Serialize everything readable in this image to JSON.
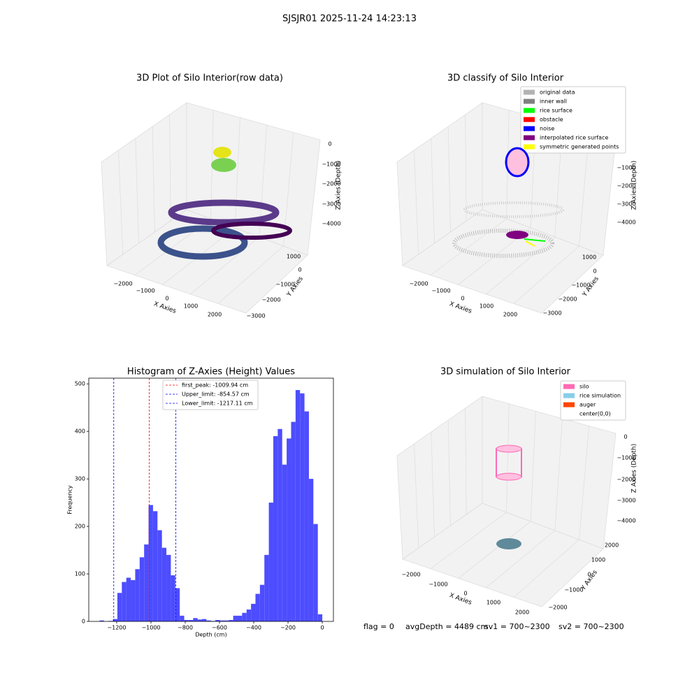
{
  "title": "SJSJR01 2025-11-24 14:23:13",
  "footer": [
    "flag = 0",
    "avgDepth = 4489 cm",
    "sv1 = 700~2300",
    "sv2 = 700~2300"
  ],
  "chart_data": [
    {
      "type": "scatter3d",
      "title": "3D Plot of Silo Interior(row data)",
      "xlabel": "X Axies",
      "ylabel": "Y Axies",
      "zlabel": "Z Axies (Depth)",
      "xticks": [
        {
          "value": -2000,
          "label": "−2000"
        },
        {
          "value": -1000,
          "label": "−1000"
        },
        0,
        1000,
        2000
      ],
      "yticks": [
        1000,
        0,
        {
          "value": -1000,
          "label": "−1000"
        },
        {
          "value": -2000,
          "label": "−2000"
        },
        {
          "value": -3000,
          "label": "−3000"
        }
      ],
      "zticks": [
        0,
        {
          "value": -1000,
          "label": "−1000"
        },
        {
          "value": -2000,
          "label": "−2000"
        },
        {
          "value": -3000,
          "label": "−3000"
        },
        {
          "value": -4000,
          "label": "−4000"
        }
      ]
    },
    {
      "type": "scatter3d",
      "title": "3D classify of Silo Interior",
      "xlabel": "X Axies",
      "ylabel": "Y Axies",
      "zlabel": "Z Axies (Depth)",
      "xticks": [
        {
          "value": -2000,
          "label": "−2000"
        },
        {
          "value": -1000,
          "label": "−1000"
        },
        0,
        1000,
        2000
      ],
      "yticks": [
        1000,
        0,
        {
          "value": -1000,
          "label": "−1000"
        },
        {
          "value": -2000,
          "label": "−2000"
        },
        {
          "value": -3000,
          "label": "−3000"
        }
      ],
      "zticks": [
        {
          "value": -1000,
          "label": "−1000"
        },
        {
          "value": -2000,
          "label": "−2000"
        },
        {
          "value": -3000,
          "label": "−3000"
        },
        {
          "value": -4000,
          "label": "−4000"
        }
      ],
      "legend": [
        {
          "name": "original data",
          "color": "#b3b3b3"
        },
        {
          "name": "inner wall",
          "color": "#808080"
        },
        {
          "name": "rice surface",
          "color": "#00ff00"
        },
        {
          "name": "obstacle",
          "color": "#ff0000"
        },
        {
          "name": "noise",
          "color": "#0000ff"
        },
        {
          "name": "interpolated rice surface",
          "color": "#800080"
        },
        {
          "name": "symmetric generated points",
          "color": "#ffff00"
        }
      ]
    },
    {
      "type": "histogram",
      "title": "Histogram of Z-Axies (Height) Values",
      "xlabel": "Depth (cm)",
      "ylabel": "Frequency",
      "color": "#4d4dff",
      "bins": [
        -1300,
        -1274,
        -1248,
        -1222,
        -1196,
        -1170,
        -1144,
        -1118,
        -1092,
        -1066,
        -1040,
        -1014,
        -988,
        -962,
        -936,
        -910,
        -884,
        -858,
        -832,
        -806,
        -780,
        -754,
        -728,
        -702,
        -676,
        -650,
        -624,
        -598,
        -572,
        -546,
        -520,
        -494,
        -468,
        -442,
        -416,
        -390,
        -364,
        -338,
        -312,
        -286,
        -260,
        -234,
        -208,
        -182,
        -156,
        -130,
        -104,
        -78,
        -52,
        -26,
        0
      ],
      "values": [
        2,
        0,
        1,
        5,
        60,
        83,
        92,
        87,
        110,
        135,
        162,
        245,
        232,
        192,
        155,
        140,
        97,
        70,
        12,
        3,
        3,
        7,
        4,
        5,
        2,
        1,
        3,
        2,
        2,
        3,
        12,
        12,
        18,
        25,
        37,
        58,
        77,
        140,
        250,
        390,
        405,
        330,
        385,
        420,
        487,
        480,
        442,
        300,
        205,
        15
      ],
      "lines": [
        {
          "name": "first_peak: -1009.94 cm",
          "value": -1009.94,
          "color": "#ff0000"
        },
        {
          "name": "Upper_limit: -854.57 cm",
          "value": -854.57,
          "color": "#0000ff"
        },
        {
          "name": "Lower_limit: -1217.11 cm",
          "value": -1217.11,
          "color": "#0000ff"
        }
      ],
      "xlim": [
        -1363,
        65
      ],
      "ylim": [
        0,
        512
      ],
      "xticks": [
        {
          "value": -1200,
          "label": "−1200"
        },
        {
          "value": -1000,
          "label": "−1000"
        },
        {
          "value": -800,
          "label": "−800"
        },
        {
          "value": -600,
          "label": "−600"
        },
        {
          "value": -400,
          "label": "−400"
        },
        {
          "value": -200,
          "label": "−200"
        },
        0
      ],
      "yticks": [
        0,
        100,
        200,
        300,
        400,
        500
      ]
    },
    {
      "type": "scatter3d",
      "title": "3D simulation of Silo Interior",
      "xlabel": "X Axies",
      "ylabel": "Y Axies",
      "zlabel": "Z Axies (Depth)",
      "xticks": [
        {
          "value": -2000,
          "label": "−2000"
        },
        {
          "value": -1000,
          "label": "−1000"
        },
        0,
        1000,
        2000
      ],
      "yticks": [
        2000,
        1000,
        0,
        {
          "value": -1000,
          "label": "−1000"
        },
        {
          "value": -2000,
          "label": "−2000"
        }
      ],
      "zticks": [
        0,
        {
          "value": -1000,
          "label": "−1000"
        },
        {
          "value": -2000,
          "label": "−2000"
        },
        {
          "value": -3000,
          "label": "−3000"
        },
        {
          "value": -4000,
          "label": "−4000"
        }
      ],
      "legend": [
        {
          "name": "silo",
          "color": "#ff69b4"
        },
        {
          "name": "rice simulation",
          "color": "#87ceeb"
        },
        {
          "name": "auger",
          "color": "#ff4500"
        },
        {
          "name": "center(0,0)",
          "color": "#ffffff"
        }
      ]
    }
  ]
}
